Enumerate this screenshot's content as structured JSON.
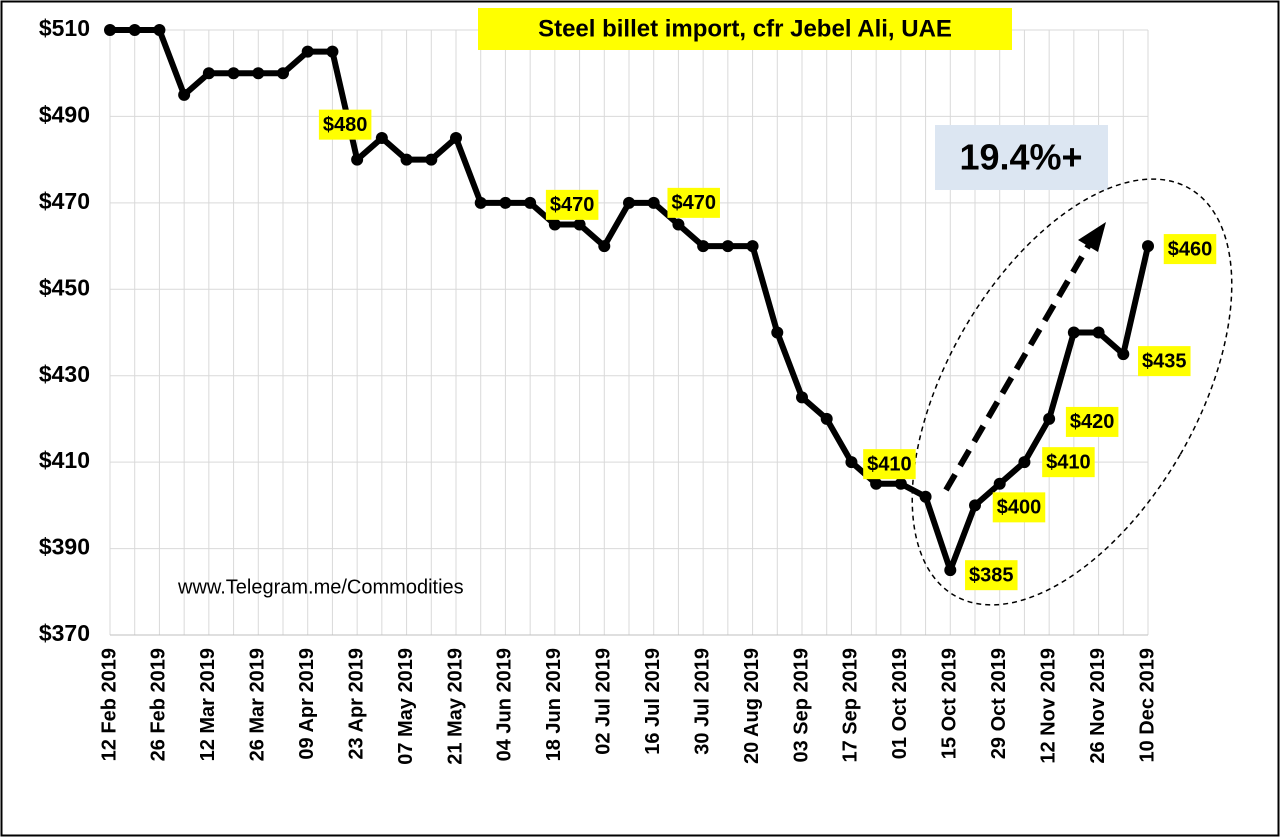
{
  "chart_data": {
    "type": "line",
    "title": "Steel billet import, cfr Jebel Ali, UAE",
    "categories": [
      "12 Feb 2019",
      null,
      "26 Feb 2019",
      null,
      "12 Mar 2019",
      null,
      "26 Mar 2019",
      null,
      "09 Apr 2019",
      null,
      "23 Apr 2019",
      null,
      "07 May 2019",
      null,
      "21 May 2019",
      null,
      "04 Jun 2019",
      null,
      "18 Jun 2019",
      null,
      "02 Jul 2019",
      null,
      "16 Jul 2019",
      null,
      "30 Jul 2019",
      null,
      "20 Aug 2019",
      null,
      "03 Sep 2019",
      null,
      "17 Sep 2019",
      null,
      "01 Oct 2019",
      null,
      "15 Oct 2019",
      null,
      "29 Oct 2019",
      null,
      "12 Nov 2019",
      null,
      "26 Nov 2019",
      null,
      "10 Dec 2019"
    ],
    "values": [
      510,
      510,
      510,
      495,
      500,
      500,
      500,
      500,
      505,
      505,
      480,
      485,
      480,
      480,
      485,
      470,
      470,
      470,
      465,
      465,
      460,
      470,
      470,
      465,
      460,
      460,
      460,
      440,
      425,
      420,
      410,
      405,
      405,
      402,
      385,
      400,
      405,
      410,
      420,
      440,
      440,
      435,
      460
    ],
    "value_labels": [
      null,
      null,
      null,
      null,
      null,
      null,
      null,
      null,
      null,
      null,
      "$480",
      null,
      null,
      null,
      null,
      null,
      null,
      "$470",
      null,
      null,
      null,
      null,
      "$470",
      null,
      null,
      null,
      null,
      null,
      null,
      null,
      "$410",
      null,
      null,
      null,
      "$385",
      "$400",
      null,
      "$410",
      "$420",
      null,
      null,
      "$435",
      "$460"
    ],
    "color": "#000000",
    "ylim": [
      370,
      510
    ],
    "yticks": [
      {
        "value": 370,
        "label": "$370"
      },
      {
        "value": 390,
        "label": "$390"
      },
      {
        "value": 410,
        "label": "$410"
      },
      {
        "value": 430,
        "label": "$430"
      },
      {
        "value": 450,
        "label": "$450"
      },
      {
        "value": 470,
        "label": "$470"
      },
      {
        "value": 490,
        "label": "$490"
      },
      {
        "value": 510,
        "label": "$510"
      }
    ],
    "grid": true,
    "annotations": [
      "19.4%+",
      "www.Telegram.me/Commodities"
    ]
  }
}
